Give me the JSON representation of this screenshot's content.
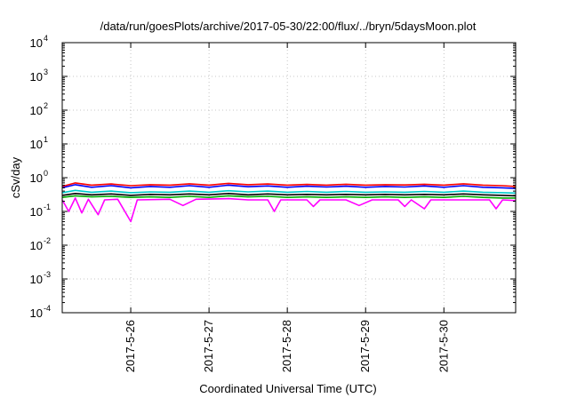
{
  "chart_data": {
    "type": "line",
    "title": "/data/run/goesPlots/archive/2017-05-30/22:00/flux/../bryn/5daysMoon.plot",
    "xlabel": "Coordinated Universal Time (UTC)",
    "ylabel": "cSv/day",
    "yscale": "log",
    "ylim": [
      0.0001,
      10000
    ],
    "xlim": [
      "2017-05-25T03:00",
      "2017-05-30T22:00"
    ],
    "grid": true,
    "legend": "none",
    "y_ticks": [
      {
        "base": "10",
        "exp": "-4",
        "value": 0.0001
      },
      {
        "base": "10",
        "exp": "-3",
        "value": 0.001
      },
      {
        "base": "10",
        "exp": "-2",
        "value": 0.01
      },
      {
        "base": "10",
        "exp": "-1",
        "value": 0.1
      },
      {
        "base": "10",
        "exp": "0",
        "value": 1
      },
      {
        "base": "10",
        "exp": "1",
        "value": 10
      },
      {
        "base": "10",
        "exp": "2",
        "value": 100
      },
      {
        "base": "10",
        "exp": "3",
        "value": 1000
      },
      {
        "base": "10",
        "exp": "4",
        "value": 10000
      }
    ],
    "x_ticks": [
      {
        "label": "2017-5-26",
        "value": "2017-05-26T00:00"
      },
      {
        "label": "2017-5-27",
        "value": "2017-05-27T00:00"
      },
      {
        "label": "2017-5-28",
        "value": "2017-05-28T00:00"
      },
      {
        "label": "2017-5-29",
        "value": "2017-05-29T00:00"
      },
      {
        "label": "2017-5-30",
        "value": "2017-05-30T00:00"
      }
    ],
    "series": [
      {
        "color": "#ff0000",
        "values": [
          {
            "x": "2017-05-25T03:00",
            "y": 0.55
          },
          {
            "x": "2017-05-25T07:00",
            "y": 0.7
          },
          {
            "x": "2017-05-25T12:00",
            "y": 0.6
          },
          {
            "x": "2017-05-25T18:00",
            "y": 0.65
          },
          {
            "x": "2017-05-26T00:00",
            "y": 0.58
          },
          {
            "x": "2017-05-26T06:00",
            "y": 0.62
          },
          {
            "x": "2017-05-26T12:00",
            "y": 0.6
          },
          {
            "x": "2017-05-26T18:00",
            "y": 0.66
          },
          {
            "x": "2017-05-27T00:00",
            "y": 0.6
          },
          {
            "x": "2017-05-27T06:00",
            "y": 0.68
          },
          {
            "x": "2017-05-27T12:00",
            "y": 0.62
          },
          {
            "x": "2017-05-27T18:00",
            "y": 0.65
          },
          {
            "x": "2017-05-28T00:00",
            "y": 0.6
          },
          {
            "x": "2017-05-28T06:00",
            "y": 0.63
          },
          {
            "x": "2017-05-28T12:00",
            "y": 0.6
          },
          {
            "x": "2017-05-28T18:00",
            "y": 0.64
          },
          {
            "x": "2017-05-29T00:00",
            "y": 0.6
          },
          {
            "x": "2017-05-29T06:00",
            "y": 0.62
          },
          {
            "x": "2017-05-29T12:00",
            "y": 0.61
          },
          {
            "x": "2017-05-29T18:00",
            "y": 0.64
          },
          {
            "x": "2017-05-30T00:00",
            "y": 0.6
          },
          {
            "x": "2017-05-30T06:00",
            "y": 0.66
          },
          {
            "x": "2017-05-30T12:00",
            "y": 0.6
          },
          {
            "x": "2017-05-30T18:00",
            "y": 0.58
          },
          {
            "x": "2017-05-30T22:00",
            "y": 0.55
          }
        ]
      },
      {
        "color": "#0000ff",
        "values": [
          {
            "x": "2017-05-25T03:00",
            "y": 0.5
          },
          {
            "x": "2017-05-25T07:00",
            "y": 0.62
          },
          {
            "x": "2017-05-25T12:00",
            "y": 0.52
          },
          {
            "x": "2017-05-25T18:00",
            "y": 0.58
          },
          {
            "x": "2017-05-26T00:00",
            "y": 0.5
          },
          {
            "x": "2017-05-26T06:00",
            "y": 0.55
          },
          {
            "x": "2017-05-26T12:00",
            "y": 0.52
          },
          {
            "x": "2017-05-26T18:00",
            "y": 0.58
          },
          {
            "x": "2017-05-27T00:00",
            "y": 0.52
          },
          {
            "x": "2017-05-27T06:00",
            "y": 0.6
          },
          {
            "x": "2017-05-27T12:00",
            "y": 0.54
          },
          {
            "x": "2017-05-27T18:00",
            "y": 0.57
          },
          {
            "x": "2017-05-28T00:00",
            "y": 0.52
          },
          {
            "x": "2017-05-28T06:00",
            "y": 0.56
          },
          {
            "x": "2017-05-28T12:00",
            "y": 0.53
          },
          {
            "x": "2017-05-28T18:00",
            "y": 0.56
          },
          {
            "x": "2017-05-29T00:00",
            "y": 0.52
          },
          {
            "x": "2017-05-29T06:00",
            "y": 0.55
          },
          {
            "x": "2017-05-29T12:00",
            "y": 0.53
          },
          {
            "x": "2017-05-29T18:00",
            "y": 0.57
          },
          {
            "x": "2017-05-30T00:00",
            "y": 0.52
          },
          {
            "x": "2017-05-30T06:00",
            "y": 0.58
          },
          {
            "x": "2017-05-30T12:00",
            "y": 0.52
          },
          {
            "x": "2017-05-30T18:00",
            "y": 0.5
          },
          {
            "x": "2017-05-30T22:00",
            "y": 0.48
          }
        ]
      },
      {
        "color": "#00cccc",
        "values": [
          {
            "x": "2017-05-25T03:00",
            "y": 0.36
          },
          {
            "x": "2017-05-25T07:00",
            "y": 0.42
          },
          {
            "x": "2017-05-25T12:00",
            "y": 0.37
          },
          {
            "x": "2017-05-25T18:00",
            "y": 0.4
          },
          {
            "x": "2017-05-26T00:00",
            "y": 0.36
          },
          {
            "x": "2017-05-26T06:00",
            "y": 0.38
          },
          {
            "x": "2017-05-26T12:00",
            "y": 0.37
          },
          {
            "x": "2017-05-26T18:00",
            "y": 0.4
          },
          {
            "x": "2017-05-27T00:00",
            "y": 0.37
          },
          {
            "x": "2017-05-27T06:00",
            "y": 0.41
          },
          {
            "x": "2017-05-27T12:00",
            "y": 0.38
          },
          {
            "x": "2017-05-27T18:00",
            "y": 0.4
          },
          {
            "x": "2017-05-28T00:00",
            "y": 0.37
          },
          {
            "x": "2017-05-28T06:00",
            "y": 0.39
          },
          {
            "x": "2017-05-28T12:00",
            "y": 0.37
          },
          {
            "x": "2017-05-28T18:00",
            "y": 0.39
          },
          {
            "x": "2017-05-29T00:00",
            "y": 0.37
          },
          {
            "x": "2017-05-29T06:00",
            "y": 0.38
          },
          {
            "x": "2017-05-29T12:00",
            "y": 0.37
          },
          {
            "x": "2017-05-29T18:00",
            "y": 0.39
          },
          {
            "x": "2017-05-30T00:00",
            "y": 0.37
          },
          {
            "x": "2017-05-30T06:00",
            "y": 0.4
          },
          {
            "x": "2017-05-30T12:00",
            "y": 0.37
          },
          {
            "x": "2017-05-30T18:00",
            "y": 0.36
          },
          {
            "x": "2017-05-30T22:00",
            "y": 0.35
          }
        ]
      },
      {
        "color": "#000000",
        "values": [
          {
            "x": "2017-05-25T03:00",
            "y": 0.3
          },
          {
            "x": "2017-05-25T07:00",
            "y": 0.34
          },
          {
            "x": "2017-05-25T12:00",
            "y": 0.31
          },
          {
            "x": "2017-05-25T18:00",
            "y": 0.33
          },
          {
            "x": "2017-05-26T00:00",
            "y": 0.3
          },
          {
            "x": "2017-05-26T06:00",
            "y": 0.32
          },
          {
            "x": "2017-05-26T12:00",
            "y": 0.31
          },
          {
            "x": "2017-05-26T18:00",
            "y": 0.33
          },
          {
            "x": "2017-05-27T00:00",
            "y": 0.31
          },
          {
            "x": "2017-05-27T06:00",
            "y": 0.34
          },
          {
            "x": "2017-05-27T12:00",
            "y": 0.31
          },
          {
            "x": "2017-05-27T18:00",
            "y": 0.33
          },
          {
            "x": "2017-05-28T00:00",
            "y": 0.31
          },
          {
            "x": "2017-05-28T06:00",
            "y": 0.32
          },
          {
            "x": "2017-05-28T12:00",
            "y": 0.31
          },
          {
            "x": "2017-05-28T18:00",
            "y": 0.32
          },
          {
            "x": "2017-05-29T00:00",
            "y": 0.31
          },
          {
            "x": "2017-05-29T06:00",
            "y": 0.32
          },
          {
            "x": "2017-05-29T12:00",
            "y": 0.31
          },
          {
            "x": "2017-05-29T18:00",
            "y": 0.32
          },
          {
            "x": "2017-05-30T00:00",
            "y": 0.31
          },
          {
            "x": "2017-05-30T06:00",
            "y": 0.33
          },
          {
            "x": "2017-05-30T12:00",
            "y": 0.31
          },
          {
            "x": "2017-05-30T18:00",
            "y": 0.3
          },
          {
            "x": "2017-05-30T22:00",
            "y": 0.29
          }
        ]
      },
      {
        "color": "#00aa00",
        "values": [
          {
            "x": "2017-05-25T03:00",
            "y": 0.26
          },
          {
            "x": "2017-05-25T07:00",
            "y": 0.29
          },
          {
            "x": "2017-05-25T12:00",
            "y": 0.27
          },
          {
            "x": "2017-05-25T18:00",
            "y": 0.28
          },
          {
            "x": "2017-05-26T00:00",
            "y": 0.26
          },
          {
            "x": "2017-05-26T06:00",
            "y": 0.27
          },
          {
            "x": "2017-05-26T12:00",
            "y": 0.26
          },
          {
            "x": "2017-05-26T18:00",
            "y": 0.28
          },
          {
            "x": "2017-05-27T00:00",
            "y": 0.26
          },
          {
            "x": "2017-05-27T06:00",
            "y": 0.29
          },
          {
            "x": "2017-05-27T12:00",
            "y": 0.27
          },
          {
            "x": "2017-05-27T18:00",
            "y": 0.28
          },
          {
            "x": "2017-05-28T00:00",
            "y": 0.26
          },
          {
            "x": "2017-05-28T06:00",
            "y": 0.27
          },
          {
            "x": "2017-05-28T12:00",
            "y": 0.26
          },
          {
            "x": "2017-05-28T18:00",
            "y": 0.27
          },
          {
            "x": "2017-05-29T00:00",
            "y": 0.26
          },
          {
            "x": "2017-05-29T06:00",
            "y": 0.27
          },
          {
            "x": "2017-05-29T12:00",
            "y": 0.26
          },
          {
            "x": "2017-05-29T18:00",
            "y": 0.27
          },
          {
            "x": "2017-05-30T00:00",
            "y": 0.26
          },
          {
            "x": "2017-05-30T06:00",
            "y": 0.28
          },
          {
            "x": "2017-05-30T12:00",
            "y": 0.26
          },
          {
            "x": "2017-05-30T18:00",
            "y": 0.25
          },
          {
            "x": "2017-05-30T22:00",
            "y": 0.25
          }
        ]
      },
      {
        "color": "#ff00ff",
        "values": [
          {
            "x": "2017-05-25T03:00",
            "y": 0.22
          },
          {
            "x": "2017-05-25T05:00",
            "y": 0.1
          },
          {
            "x": "2017-05-25T07:00",
            "y": 0.25
          },
          {
            "x": "2017-05-25T09:00",
            "y": 0.09
          },
          {
            "x": "2017-05-25T11:00",
            "y": 0.23
          },
          {
            "x": "2017-05-25T14:00",
            "y": 0.08
          },
          {
            "x": "2017-05-25T16:00",
            "y": 0.22
          },
          {
            "x": "2017-05-25T20:00",
            "y": 0.23
          },
          {
            "x": "2017-05-26T00:00",
            "y": 0.05
          },
          {
            "x": "2017-05-26T02:00",
            "y": 0.22
          },
          {
            "x": "2017-05-26T12:00",
            "y": 0.23
          },
          {
            "x": "2017-05-26T16:00",
            "y": 0.15
          },
          {
            "x": "2017-05-26T20:00",
            "y": 0.23
          },
          {
            "x": "2017-05-27T06:00",
            "y": 0.24
          },
          {
            "x": "2017-05-27T12:00",
            "y": 0.22
          },
          {
            "x": "2017-05-27T18:00",
            "y": 0.22
          },
          {
            "x": "2017-05-27T20:00",
            "y": 0.1
          },
          {
            "x": "2017-05-27T22:00",
            "y": 0.22
          },
          {
            "x": "2017-05-28T06:00",
            "y": 0.22
          },
          {
            "x": "2017-05-28T08:00",
            "y": 0.14
          },
          {
            "x": "2017-05-28T10:00",
            "y": 0.22
          },
          {
            "x": "2017-05-28T18:00",
            "y": 0.22
          },
          {
            "x": "2017-05-28T22:00",
            "y": 0.15
          },
          {
            "x": "2017-05-29T02:00",
            "y": 0.22
          },
          {
            "x": "2017-05-29T10:00",
            "y": 0.22
          },
          {
            "x": "2017-05-29T12:00",
            "y": 0.14
          },
          {
            "x": "2017-05-29T14:00",
            "y": 0.22
          },
          {
            "x": "2017-05-29T18:00",
            "y": 0.12
          },
          {
            "x": "2017-05-29T20:00",
            "y": 0.22
          },
          {
            "x": "2017-05-30T02:00",
            "y": 0.22
          },
          {
            "x": "2017-05-30T08:00",
            "y": 0.22
          },
          {
            "x": "2017-05-30T14:00",
            "y": 0.22
          },
          {
            "x": "2017-05-30T16:00",
            "y": 0.12
          },
          {
            "x": "2017-05-30T18:00",
            "y": 0.22
          },
          {
            "x": "2017-05-30T22:00",
            "y": 0.21
          }
        ]
      }
    ]
  }
}
